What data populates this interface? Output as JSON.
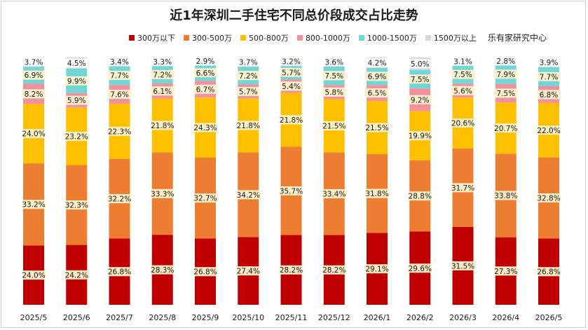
{
  "title": "近1年深圳二手住宅不同总价段成交占比走势",
  "source": "乐有家研究中心",
  "chart_data": {
    "type": "bar",
    "stacked": true,
    "percent": true,
    "categories": [
      "2025/5",
      "2025/6",
      "2025/7",
      "2025/8",
      "2025/9",
      "2025/10",
      "2025/11",
      "2025/12",
      "2026/1",
      "2026/2",
      "2026/3",
      "2026/4",
      "2026/5"
    ],
    "series": [
      {
        "name": "300万以下",
        "color": "#c00000",
        "values": [
          24.0,
          24.2,
          26.8,
          28.3,
          26.8,
          27.4,
          28.2,
          28.2,
          29.1,
          29.6,
          31.5,
          27.3,
          26.8
        ]
      },
      {
        "name": "300-500万",
        "color": "#ed7d31",
        "values": [
          33.2,
          32.3,
          32.2,
          33.3,
          32.7,
          34.2,
          35.7,
          33.4,
          31.8,
          28.8,
          31.7,
          33.8,
          32.8
        ]
      },
      {
        "name": "500-800万",
        "color": "#ffc000",
        "values": [
          24.0,
          23.2,
          22.3,
          21.8,
          24.3,
          21.8,
          21.8,
          21.5,
          21.5,
          19.9,
          20.6,
          20.7,
          22.0
        ]
      },
      {
        "name": "800-1000万",
        "color": "#f4919e",
        "values": [
          8.2,
          5.9,
          7.6,
          6.1,
          6.7,
          5.7,
          5.4,
          5.8,
          6.5,
          9.2,
          5.6,
          7.5,
          6.8
        ]
      },
      {
        "name": "1000-1500万",
        "color": "#70d6d6",
        "values": [
          6.9,
          9.9,
          7.7,
          7.2,
          6.6,
          7.2,
          5.7,
          7.5,
          6.9,
          7.5,
          7.5,
          7.9,
          7.7
        ]
      },
      {
        "name": "1500万以上",
        "color": "#d9d9d9",
        "values": [
          3.7,
          4.5,
          3.4,
          3.3,
          2.9,
          3.7,
          3.2,
          3.6,
          4.2,
          5.0,
          3.1,
          2.8,
          3.9
        ]
      }
    ],
    "ylim": [
      0,
      100
    ],
    "legend": "top",
    "grid": false
  }
}
